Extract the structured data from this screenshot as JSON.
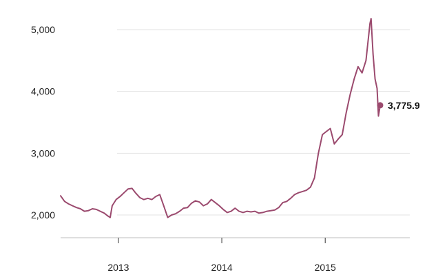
{
  "chart_data": {
    "type": "line",
    "title": "",
    "xlabel": "",
    "ylabel": "",
    "ylim": [
      2000,
      5000
    ],
    "xlim": [
      "2012-06-11",
      "2015-07-14"
    ],
    "grid": "horizontal",
    "legend": "none",
    "y_ticks": [
      {
        "value": 2000,
        "label": "2,000"
      },
      {
        "value": 3000,
        "label": "3,000"
      },
      {
        "value": 4000,
        "label": "4,000"
      },
      {
        "value": 5000,
        "label": "5,000"
      }
    ],
    "x_ticks": [
      {
        "value": "2013-01-01",
        "label": "2013"
      },
      {
        "value": "2014-01-01",
        "label": "2014"
      },
      {
        "value": "2015-01-01",
        "label": "2015"
      }
    ],
    "line_color": "#9b4a6e",
    "series": [
      {
        "x": [
          "2012-06-11",
          "2012-06-25",
          "2012-07-09",
          "2012-07-23",
          "2012-08-06",
          "2012-08-20",
          "2012-09-03",
          "2012-09-17",
          "2012-10-01",
          "2012-10-15",
          "2012-10-29",
          "2012-11-12",
          "2012-11-26",
          "2012-12-03",
          "2012-12-10",
          "2012-12-24",
          "2013-01-07",
          "2013-01-21",
          "2013-02-04",
          "2013-02-18",
          "2013-03-04",
          "2013-03-18",
          "2013-04-01",
          "2013-04-15",
          "2013-04-29",
          "2013-05-13",
          "2013-05-27",
          "2013-06-10",
          "2013-06-24",
          "2013-07-08",
          "2013-07-22",
          "2013-08-05",
          "2013-08-19",
          "2013-09-02",
          "2013-09-16",
          "2013-09-30",
          "2013-10-14",
          "2013-10-28",
          "2013-11-11",
          "2013-11-25",
          "2013-12-09",
          "2013-12-23",
          "2014-01-06",
          "2014-01-20",
          "2014-02-03",
          "2014-02-17",
          "2014-03-03",
          "2014-03-17",
          "2014-03-31",
          "2014-04-14",
          "2014-04-28",
          "2014-05-12",
          "2014-05-26",
          "2014-06-09",
          "2014-06-23",
          "2014-07-07",
          "2014-07-21",
          "2014-08-04",
          "2014-08-18",
          "2014-09-01",
          "2014-09-15",
          "2014-09-29",
          "2014-10-13",
          "2014-10-27",
          "2014-11-10",
          "2014-11-24",
          "2014-12-01",
          "2014-12-08",
          "2014-12-15",
          "2014-12-22",
          "2015-01-05",
          "2015-01-19",
          "2015-02-02",
          "2015-02-16",
          "2015-03-02",
          "2015-03-16",
          "2015-03-30",
          "2015-04-13",
          "2015-04-27",
          "2015-05-11",
          "2015-05-25",
          "2015-06-08",
          "2015-06-12",
          "2015-06-19",
          "2015-06-26",
          "2015-07-03",
          "2015-07-08",
          "2015-07-14"
        ],
        "y": [
          2310,
          2220,
          2180,
          2150,
          2120,
          2100,
          2060,
          2070,
          2100,
          2090,
          2060,
          2030,
          1980,
          1960,
          2150,
          2250,
          2300,
          2360,
          2420,
          2430,
          2350,
          2280,
          2250,
          2270,
          2250,
          2300,
          2330,
          2150,
          1960,
          2000,
          2020,
          2060,
          2110,
          2120,
          2190,
          2230,
          2210,
          2150,
          2180,
          2250,
          2200,
          2150,
          2090,
          2040,
          2060,
          2110,
          2060,
          2040,
          2060,
          2050,
          2060,
          2030,
          2040,
          2060,
          2070,
          2080,
          2120,
          2200,
          2220,
          2270,
          2330,
          2360,
          2380,
          2400,
          2450,
          2600,
          2800,
          3000,
          3150,
          3300,
          3350,
          3400,
          3150,
          3230,
          3300,
          3650,
          3950,
          4200,
          4400,
          4300,
          4500,
          5100,
          5178,
          4600,
          4200,
          4050,
          3600,
          3775.9
        ]
      }
    ],
    "end_label": "3,775.9"
  }
}
